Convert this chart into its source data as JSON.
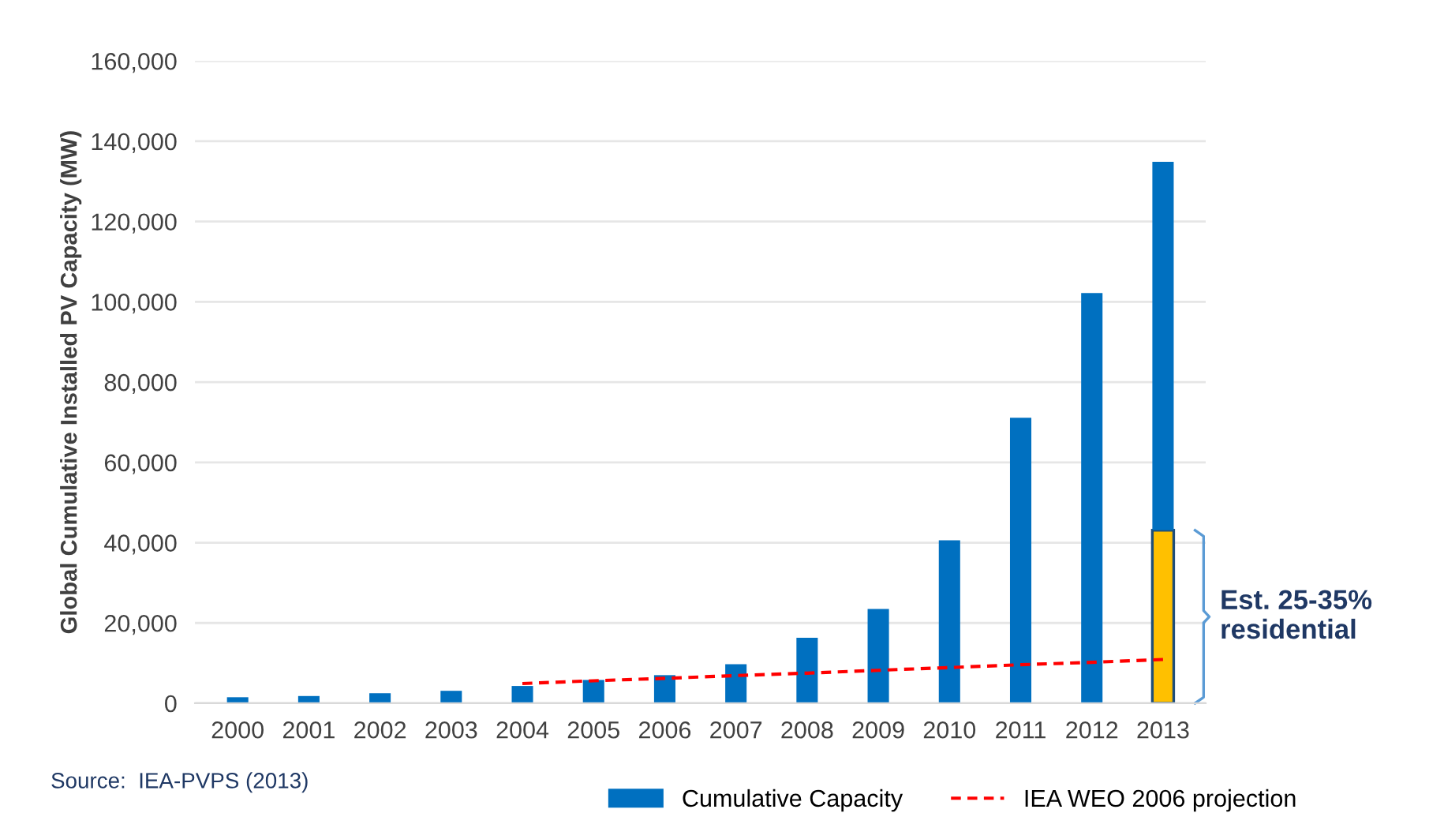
{
  "chart_data": {
    "type": "bar",
    "stacked": true,
    "ylabel": "Global Cumulative Installed PV Capacity (MW)",
    "categories": [
      "2000",
      "2001",
      "2002",
      "2003",
      "2004",
      "2005",
      "2006",
      "2007",
      "2008",
      "2009",
      "2010",
      "2011",
      "2012",
      "2013"
    ],
    "series": [
      {
        "color": "#ffc000",
        "values": [
          null,
          null,
          null,
          null,
          null,
          null,
          null,
          null,
          null,
          null,
          null,
          null,
          null,
          43100
        ]
      },
      {
        "name": "Cumulative Capacity",
        "color": "#0070c0",
        "values": [
          1500,
          1800,
          2500,
          3100,
          4300,
          5800,
          7000,
          9700,
          16300,
          23500,
          40600,
          71100,
          102200,
          91800
        ]
      },
      {
        "name": "IEA WEO 2006 projection",
        "type": "line",
        "line_style": "dashed",
        "color": "#ff0000",
        "values": [
          null,
          null,
          null,
          null,
          4900,
          5600,
          6200,
          6900,
          7500,
          8200,
          8900,
          9600,
          10200,
          10900
        ]
      }
    ],
    "ylim": [
      0,
      160000
    ],
    "yticks": [
      {
        "value": 0,
        "label": "0"
      },
      {
        "value": 20000,
        "label": "20,000"
      },
      {
        "value": 40000,
        "label": "40,000"
      },
      {
        "value": 60000,
        "label": "60,000"
      },
      {
        "value": 80000,
        "label": "80,000"
      },
      {
        "value": 100000,
        "label": "100,000"
      },
      {
        "value": 120000,
        "label": "120,000"
      },
      {
        "value": 140000,
        "label": "140,000"
      },
      {
        "value": 160000,
        "label": "160,000"
      }
    ],
    "grid": "y",
    "legend": "bottom",
    "annotations": [
      "Est. 25-35%\nresidential",
      "Source:  IEA-PVPS (2013)"
    ]
  }
}
